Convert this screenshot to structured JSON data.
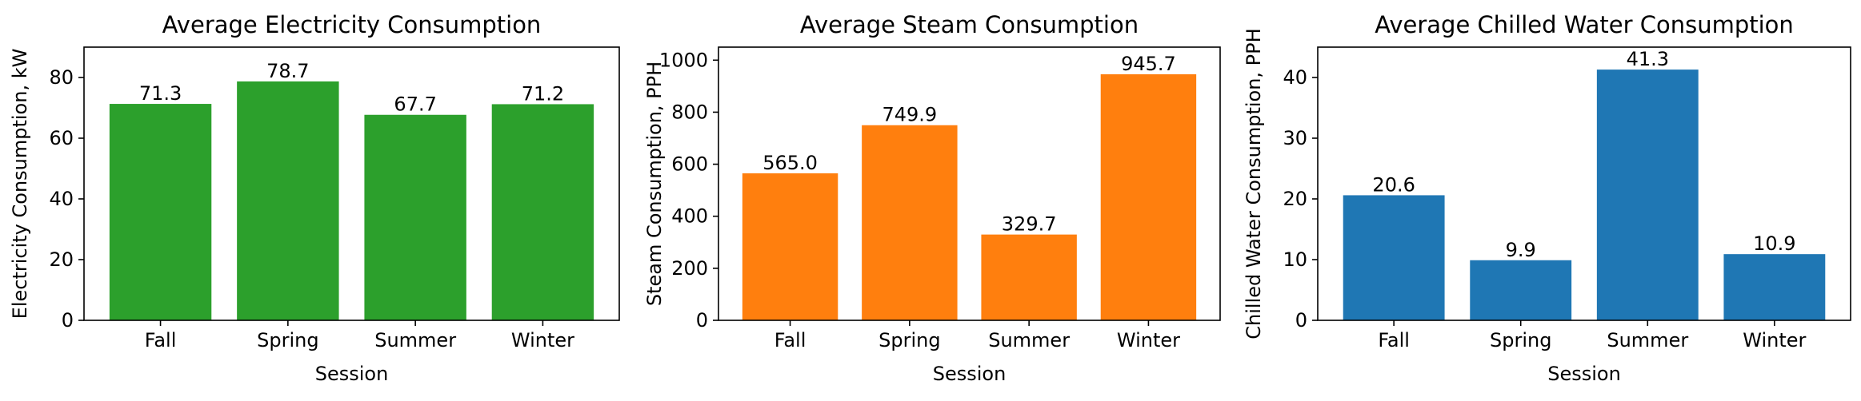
{
  "chart_data": [
    {
      "type": "bar",
      "title": "Average Electricity Consumption",
      "xlabel": "Session",
      "ylabel": "Electricity Consumption, kW",
      "categories": [
        "Fall",
        "Spring",
        "Summer",
        "Winter"
      ],
      "values": [
        71.3,
        78.7,
        67.7,
        71.2
      ],
      "value_labels": [
        "71.3",
        "78.7",
        "67.7",
        "71.2"
      ],
      "ylim": [
        0,
        90
      ],
      "yticks": [
        0,
        20,
        40,
        60,
        80
      ],
      "color": "#2ca02c",
      "grid": false
    },
    {
      "type": "bar",
      "title": "Average Steam Consumption",
      "xlabel": "Session",
      "ylabel": "Steam Consumption, PPH",
      "categories": [
        "Fall",
        "Spring",
        "Summer",
        "Winter"
      ],
      "values": [
        565.0,
        749.9,
        329.7,
        945.7
      ],
      "value_labels": [
        "565.0",
        "749.9",
        "329.7",
        "945.7"
      ],
      "ylim": [
        0,
        1050
      ],
      "yticks": [
        0,
        200,
        400,
        600,
        800,
        1000
      ],
      "color": "#ff7f0e",
      "grid": false
    },
    {
      "type": "bar",
      "title": "Average Chilled Water Consumption",
      "xlabel": "Session",
      "ylabel": "Chilled Water Consumption, PPH",
      "categories": [
        "Fall",
        "Spring",
        "Summer",
        "Winter"
      ],
      "values": [
        20.6,
        9.9,
        41.3,
        10.9
      ],
      "value_labels": [
        "20.6",
        "9.9",
        "41.3",
        "10.9"
      ],
      "ylim": [
        0,
        45
      ],
      "yticks": [
        0,
        10,
        20,
        30,
        40
      ],
      "color": "#1f77b4",
      "grid": false
    }
  ]
}
